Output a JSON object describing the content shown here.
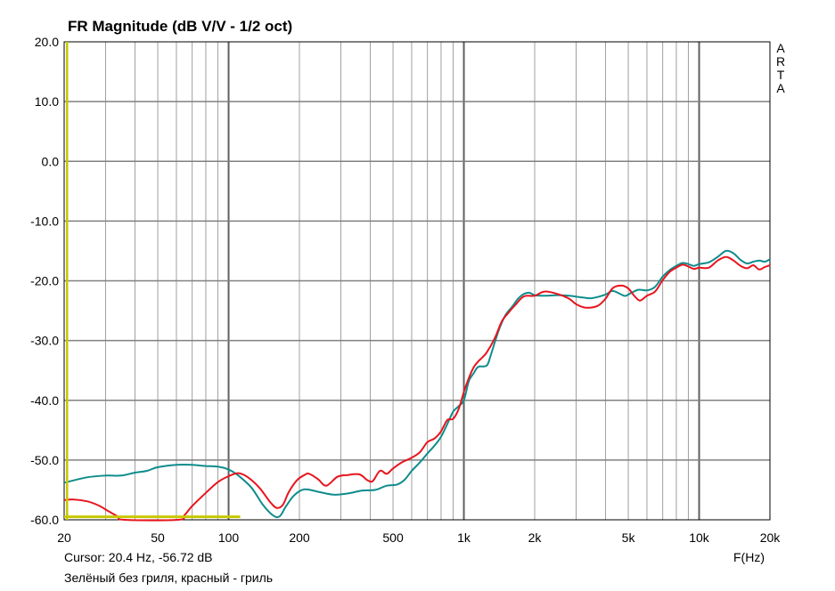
{
  "chart_data": {
    "type": "line",
    "title": "FR Magnitude (dB V/V - 1/2 oct)",
    "brand": [
      "A",
      "R",
      "T",
      "A"
    ],
    "xlabel": "F(Hz)",
    "ylabel": "",
    "xscale": "log",
    "xlim": [
      20,
      20000
    ],
    "ylim": [
      -60,
      20
    ],
    "grid": true,
    "yticks": [
      20,
      10,
      0,
      -10,
      -20,
      -30,
      -40,
      -50,
      -60
    ],
    "ytick_labels": [
      "20.0",
      "10.0",
      "0.0",
      "-10.0",
      "-20.0",
      "-30.0",
      "-40.0",
      "-50.0",
      "-60.0"
    ],
    "xticks": [
      20,
      50,
      100,
      200,
      500,
      1000,
      2000,
      5000,
      10000,
      20000
    ],
    "xtick_labels": [
      "20",
      "50",
      "100",
      "200",
      "500",
      "1k",
      "2k",
      "5k",
      "10k",
      "20k"
    ],
    "colors": {
      "green": "#0f8c8c",
      "red": "#e8141e",
      "cursor": "#c8c800",
      "grid": "#a0a0a0"
    },
    "cursor_text": "Cursor: 20.4 Hz, -56.72 dB",
    "caption": "Зелёный без гриля, красный - гриль",
    "cursor_marker": {
      "x": 20.4,
      "bottom_line_x_end": 112,
      "bottom_line_y": -59.5
    },
    "series": [
      {
        "color": "#0f8c8c",
        "points": [
          [
            20,
            -53.8
          ],
          [
            25,
            -52.9
          ],
          [
            30,
            -52.6
          ],
          [
            35,
            -52.6
          ],
          [
            40,
            -52.1
          ],
          [
            45,
            -51.8
          ],
          [
            50,
            -51.2
          ],
          [
            60,
            -50.8
          ],
          [
            70,
            -50.8
          ],
          [
            80,
            -51.0
          ],
          [
            90,
            -51.1
          ],
          [
            100,
            -51.6
          ],
          [
            110,
            -52.6
          ],
          [
            125,
            -54.6
          ],
          [
            140,
            -57.5
          ],
          [
            155,
            -59.3
          ],
          [
            165,
            -59.4
          ],
          [
            175,
            -57.8
          ],
          [
            190,
            -55.9
          ],
          [
            210,
            -54.9
          ],
          [
            240,
            -55.3
          ],
          [
            280,
            -55.8
          ],
          [
            320,
            -55.6
          ],
          [
            370,
            -55.1
          ],
          [
            420,
            -55.0
          ],
          [
            470,
            -54.3
          ],
          [
            520,
            -54.1
          ],
          [
            560,
            -53.3
          ],
          [
            600,
            -51.8
          ],
          [
            650,
            -50.4
          ],
          [
            700,
            -48.9
          ],
          [
            750,
            -47.6
          ],
          [
            800,
            -46.1
          ],
          [
            850,
            -44.0
          ],
          [
            900,
            -41.9
          ],
          [
            950,
            -41.0
          ],
          [
            1000,
            -40.0
          ],
          [
            1050,
            -36.8
          ],
          [
            1100,
            -35.5
          ],
          [
            1150,
            -34.4
          ],
          [
            1250,
            -34.2
          ],
          [
            1300,
            -32.5
          ],
          [
            1400,
            -28.5
          ],
          [
            1500,
            -25.8
          ],
          [
            1600,
            -24.4
          ],
          [
            1700,
            -23.0
          ],
          [
            1800,
            -22.2
          ],
          [
            1900,
            -22.0
          ],
          [
            2000,
            -22.4
          ],
          [
            2200,
            -22.5
          ],
          [
            2500,
            -22.4
          ],
          [
            2800,
            -22.5
          ],
          [
            3200,
            -22.8
          ],
          [
            3500,
            -22.9
          ],
          [
            4000,
            -22.3
          ],
          [
            4300,
            -21.7
          ],
          [
            4800,
            -22.5
          ],
          [
            5000,
            -22.3
          ],
          [
            5500,
            -21.5
          ],
          [
            6000,
            -21.6
          ],
          [
            6500,
            -21.0
          ],
          [
            7000,
            -19.3
          ],
          [
            7500,
            -18.2
          ],
          [
            8000,
            -17.5
          ],
          [
            8500,
            -17.0
          ],
          [
            9000,
            -17.2
          ],
          [
            9500,
            -17.5
          ],
          [
            10000,
            -17.2
          ],
          [
            11000,
            -16.9
          ],
          [
            12000,
            -16.0
          ],
          [
            13000,
            -15.0
          ],
          [
            14000,
            -15.4
          ],
          [
            15000,
            -16.5
          ],
          [
            16000,
            -17.1
          ],
          [
            17000,
            -16.8
          ],
          [
            18000,
            -16.6
          ],
          [
            19000,
            -16.8
          ],
          [
            20000,
            -16.4
          ]
        ]
      },
      {
        "color": "#e8141e",
        "points": [
          [
            20,
            -56.7
          ],
          [
            22,
            -56.6
          ],
          [
            25,
            -56.9
          ],
          [
            28,
            -57.6
          ],
          [
            31,
            -58.6
          ],
          [
            34,
            -59.5
          ],
          [
            36,
            -60.0
          ],
          [
            61,
            -60.0
          ],
          [
            65,
            -59.2
          ],
          [
            70,
            -57.7
          ],
          [
            80,
            -55.5
          ],
          [
            90,
            -53.7
          ],
          [
            100,
            -52.7
          ],
          [
            110,
            -52.2
          ],
          [
            120,
            -52.8
          ],
          [
            135,
            -54.6
          ],
          [
            150,
            -57.0
          ],
          [
            160,
            -58.0
          ],
          [
            170,
            -57.5
          ],
          [
            180,
            -55.4
          ],
          [
            195,
            -53.4
          ],
          [
            210,
            -52.5
          ],
          [
            220,
            -52.3
          ],
          [
            240,
            -53.2
          ],
          [
            260,
            -54.3
          ],
          [
            290,
            -52.8
          ],
          [
            320,
            -52.5
          ],
          [
            360,
            -52.4
          ],
          [
            390,
            -53.4
          ],
          [
            410,
            -53.5
          ],
          [
            440,
            -51.8
          ],
          [
            470,
            -52.3
          ],
          [
            500,
            -51.4
          ],
          [
            550,
            -50.3
          ],
          [
            600,
            -49.6
          ],
          [
            650,
            -48.7
          ],
          [
            700,
            -47.0
          ],
          [
            750,
            -46.4
          ],
          [
            800,
            -45.2
          ],
          [
            850,
            -43.3
          ],
          [
            900,
            -43.1
          ],
          [
            950,
            -41.5
          ],
          [
            1000,
            -38.6
          ],
          [
            1050,
            -36.3
          ],
          [
            1100,
            -34.5
          ],
          [
            1150,
            -33.5
          ],
          [
            1200,
            -32.8
          ],
          [
            1250,
            -32.0
          ],
          [
            1350,
            -29.7
          ],
          [
            1450,
            -26.8
          ],
          [
            1550,
            -25.3
          ],
          [
            1650,
            -24.1
          ],
          [
            1800,
            -22.6
          ],
          [
            2000,
            -22.5
          ],
          [
            2200,
            -21.8
          ],
          [
            2500,
            -22.2
          ],
          [
            2800,
            -23.0
          ],
          [
            3000,
            -23.9
          ],
          [
            3300,
            -24.5
          ],
          [
            3700,
            -24.2
          ],
          [
            4000,
            -23.0
          ],
          [
            4300,
            -21.2
          ],
          [
            4700,
            -20.8
          ],
          [
            5000,
            -21.3
          ],
          [
            5300,
            -22.5
          ],
          [
            5600,
            -23.3
          ],
          [
            6000,
            -22.5
          ],
          [
            6500,
            -21.8
          ],
          [
            7000,
            -19.9
          ],
          [
            7500,
            -18.5
          ],
          [
            8000,
            -17.8
          ],
          [
            8500,
            -17.3
          ],
          [
            9000,
            -17.6
          ],
          [
            9500,
            -18.0
          ],
          [
            10000,
            -17.8
          ],
          [
            11000,
            -17.8
          ],
          [
            12000,
            -16.6
          ],
          [
            13000,
            -16.0
          ],
          [
            14000,
            -16.6
          ],
          [
            15000,
            -17.5
          ],
          [
            16000,
            -17.9
          ],
          [
            17000,
            -17.4
          ],
          [
            18000,
            -18.1
          ],
          [
            19000,
            -17.7
          ],
          [
            20000,
            -17.4
          ]
        ]
      }
    ]
  }
}
